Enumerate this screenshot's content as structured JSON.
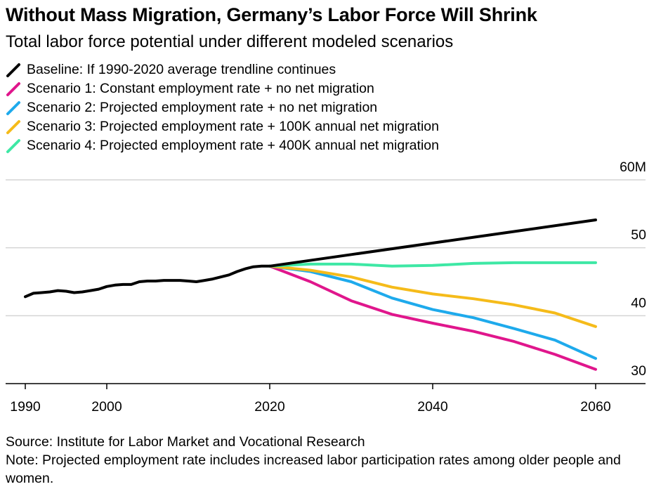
{
  "header": {
    "title": "Without Mass Migration, Germany’s Labor Force Will Shrink",
    "subtitle": "Total labor force potential under different modeled scenarios"
  },
  "footer": {
    "source": "Source: Institute for Labor Market and Vocational Research",
    "note": "Note: Projected employment rate includes increased labor participation rates among older people and women."
  },
  "chart_data": {
    "type": "line",
    "title": "Without Mass Migration, Germany’s Labor Force Will Shrink",
    "subtitle": "Total labor force potential under different modeled scenarios",
    "xlabel": "",
    "ylabel": "",
    "xlim": [
      1990,
      2060
    ],
    "ylim": [
      30,
      60
    ],
    "x_ticks": [
      1990,
      2000,
      2020,
      2040,
      2060
    ],
    "x_tick_labels": [
      "1990",
      "2000",
      "2020",
      "2040",
      "2060"
    ],
    "y_ticks": [
      30,
      40,
      50,
      60
    ],
    "y_tick_labels": [
      "30",
      "40",
      "50",
      "60M"
    ],
    "y_axis_side": "right",
    "grid": "horizontal",
    "legend_position": "top-left",
    "series": [
      {
        "name": "Baseline: If 1990-2020 average trendline continues",
        "color": "#000000",
        "x": [
          1990,
          1991,
          1992,
          1993,
          1994,
          1995,
          1996,
          1997,
          1998,
          1999,
          2000,
          2001,
          2002,
          2003,
          2004,
          2005,
          2006,
          2007,
          2008,
          2009,
          2010,
          2011,
          2012,
          2013,
          2014,
          2015,
          2016,
          2017,
          2018,
          2019,
          2020,
          2030,
          2040,
          2050,
          2060
        ],
        "y": [
          42.8,
          43.3,
          43.4,
          43.5,
          43.7,
          43.6,
          43.4,
          43.5,
          43.7,
          43.9,
          44.3,
          44.5,
          44.6,
          44.6,
          45.0,
          45.1,
          45.1,
          45.2,
          45.2,
          45.2,
          45.1,
          45.0,
          45.2,
          45.4,
          45.7,
          46.0,
          46.5,
          46.9,
          47.2,
          47.3,
          47.3,
          49.0,
          50.7,
          52.4,
          54.1
        ]
      },
      {
        "name": "Scenario 1: Constant employment rate + no net migration",
        "color": "#e0168c",
        "x": [
          2020,
          2025,
          2030,
          2035,
          2040,
          2045,
          2050,
          2055,
          2060
        ],
        "y": [
          47.3,
          45.0,
          42.2,
          40.2,
          38.9,
          37.7,
          36.2,
          34.3,
          32.1
        ]
      },
      {
        "name": "Scenario 2: Projected employment rate + no net migration",
        "color": "#1eaaec",
        "x": [
          2020,
          2025,
          2030,
          2035,
          2040,
          2045,
          2050,
          2055,
          2060
        ],
        "y": [
          47.3,
          46.5,
          45.0,
          42.6,
          40.9,
          39.7,
          38.1,
          36.4,
          33.7
        ]
      },
      {
        "name": "Scenario 3: Projected employment rate + 100K annual net migration",
        "color": "#f5bb1a",
        "x": [
          2020,
          2025,
          2030,
          2035,
          2040,
          2045,
          2050,
          2055,
          2060
        ],
        "y": [
          47.3,
          46.7,
          45.7,
          44.2,
          43.2,
          42.5,
          41.6,
          40.4,
          38.4
        ]
      },
      {
        "name": "Scenario 4: Projected employment rate + 400K annual net migration",
        "color": "#3ee8a5",
        "x": [
          2020,
          2025,
          2030,
          2035,
          2040,
          2045,
          2050,
          2055,
          2060
        ],
        "y": [
          47.3,
          47.6,
          47.6,
          47.3,
          47.4,
          47.7,
          47.8,
          47.8,
          47.8
        ]
      }
    ]
  }
}
